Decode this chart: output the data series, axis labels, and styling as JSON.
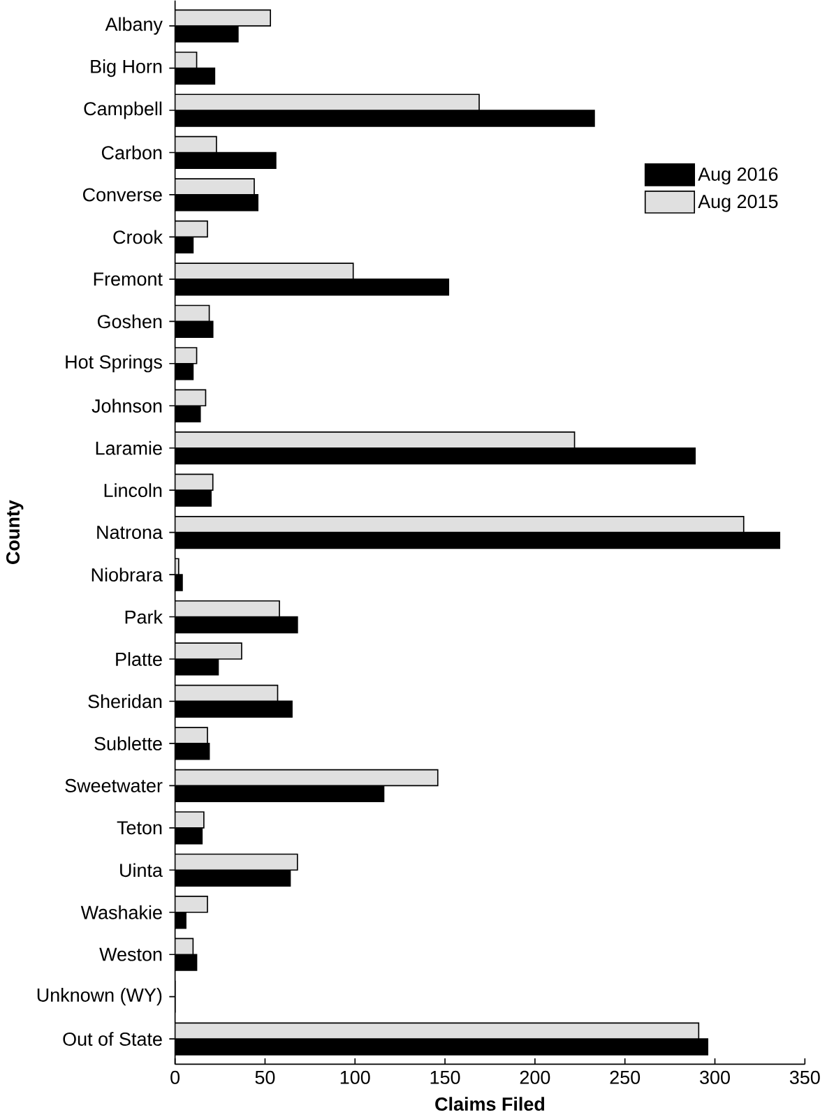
{
  "chart_data": {
    "type": "bar",
    "orientation": "horizontal",
    "categories": [
      "Albany",
      "Big Horn",
      "Campbell",
      "Carbon",
      "Converse",
      "Crook",
      "Fremont",
      "Goshen",
      "Hot Springs",
      "Johnson",
      "Laramie",
      "Lincoln",
      "Natrona",
      "Niobrara",
      "Park",
      "Platte",
      "Sheridan",
      "Sublette",
      "Sweetwater",
      "Teton",
      "Uinta",
      "Washakie",
      "Weston",
      "Unknown (WY)",
      "Out of State"
    ],
    "series": [
      {
        "name": "Aug 2016",
        "color": "#000000",
        "values": [
          35,
          22,
          233,
          56,
          46,
          10,
          152,
          21,
          10,
          14,
          289,
          20,
          336,
          4,
          68,
          24,
          65,
          19,
          116,
          15,
          64,
          6,
          12,
          0,
          296
        ]
      },
      {
        "name": "Aug 2015",
        "color": "#e0e0e0",
        "values": [
          53,
          12,
          169,
          23,
          44,
          18,
          99,
          19,
          12,
          17,
          222,
          21,
          316,
          2,
          58,
          37,
          57,
          18,
          146,
          16,
          68,
          18,
          10,
          0,
          291
        ]
      }
    ],
    "xlim": [
      0,
      350
    ],
    "xticks": [
      0,
      50,
      100,
      150,
      200,
      250,
      300,
      350
    ],
    "xlabel": "Claims Filed",
    "ylabel": "County",
    "legend": "top right"
  }
}
